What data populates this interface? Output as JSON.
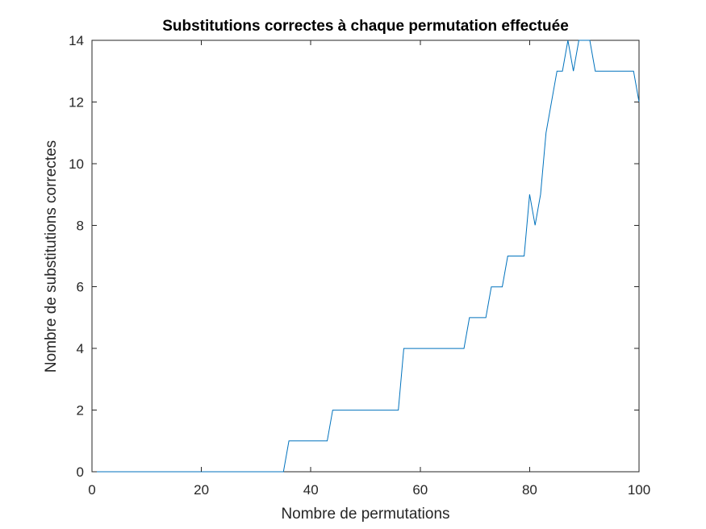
{
  "chart_data": {
    "type": "line",
    "title": "Substitutions correctes à chaque permutation effectuée",
    "xlabel": "Nombre de permutations",
    "ylabel": "Nombre de substitutions correctes",
    "xlim": [
      0,
      100
    ],
    "ylim": [
      0,
      14
    ],
    "xticks": [
      0,
      20,
      40,
      60,
      80,
      100
    ],
    "yticks": [
      0,
      2,
      4,
      6,
      8,
      10,
      12,
      14
    ],
    "grid": false,
    "line_color": "#0072BD",
    "series": [
      {
        "x": [
          0,
          35,
          36,
          43,
          44,
          56,
          57,
          68,
          69,
          72,
          73,
          75,
          76,
          79,
          80,
          81,
          82,
          83,
          84,
          85,
          86,
          87,
          88,
          89,
          90,
          91,
          92,
          99,
          100
        ],
        "values": [
          0,
          0,
          1,
          1,
          2,
          2,
          4,
          4,
          5,
          5,
          6,
          6,
          7,
          7,
          9,
          8,
          9,
          11,
          12,
          13,
          13,
          14,
          13,
          14,
          14,
          14,
          13,
          13,
          12
        ]
      }
    ]
  }
}
